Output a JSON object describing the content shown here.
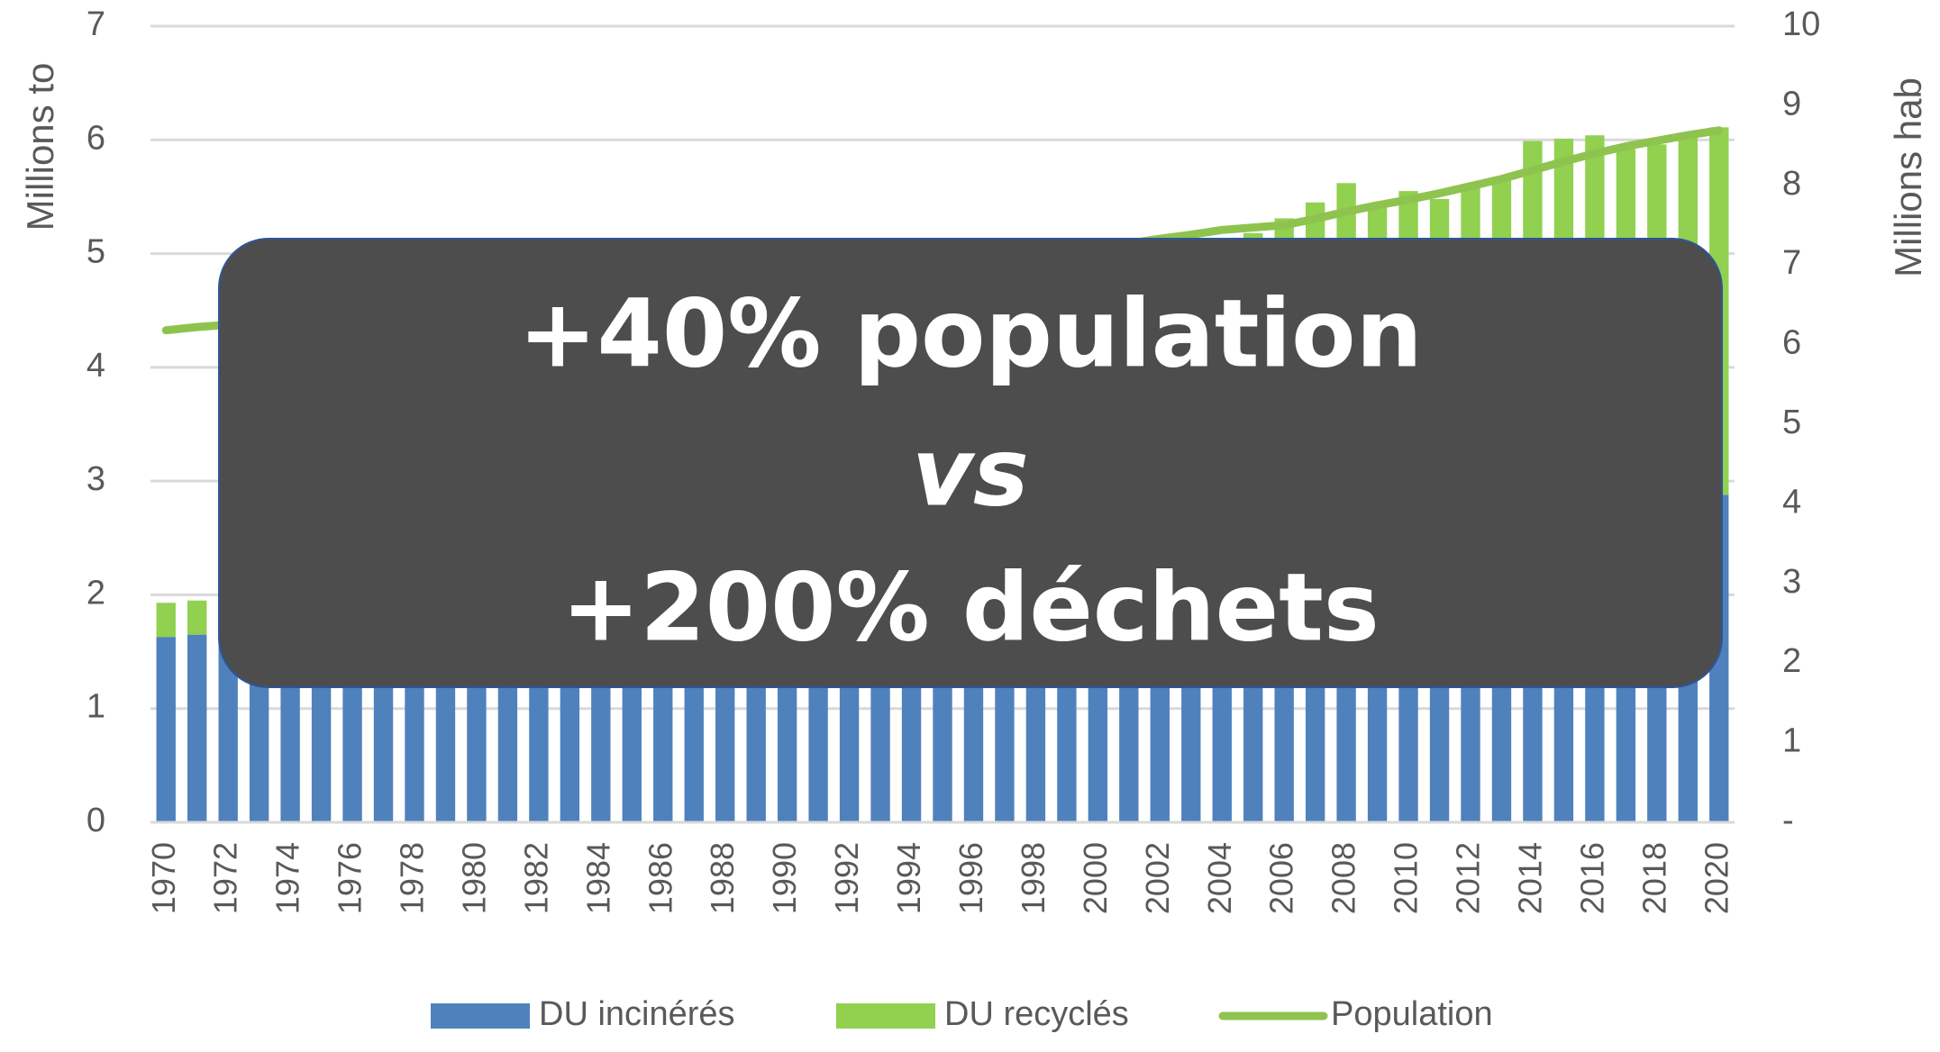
{
  "chart_data": {
    "type": "bar",
    "stacked": true,
    "y_label": "Millions to",
    "y2_label": "Millions hab",
    "categories": [
      "1970",
      null,
      "1972",
      null,
      "1974",
      null,
      "1976",
      null,
      "1978",
      null,
      "1980",
      null,
      "1982",
      null,
      "1984",
      null,
      "1986",
      null,
      "1988",
      null,
      "1990",
      null,
      "1992",
      null,
      "1994",
      null,
      "1996",
      null,
      "1998",
      null,
      "2000",
      null,
      "2002",
      null,
      "2004",
      null,
      "2006",
      null,
      "2008",
      null,
      "2010",
      null,
      "2012",
      null,
      "2014",
      null,
      "2016",
      null,
      "2018",
      null,
      "2020"
    ],
    "series": [
      {
        "name": "DU incinérés",
        "type": "bar",
        "color": "#4f81bd",
        "values": [
          1.63,
          1.65,
          1.68,
          1.7,
          1.73,
          1.75,
          1.78,
          1.8,
          1.83,
          1.85,
          1.88,
          1.9,
          1.93,
          1.95,
          1.98,
          2.0,
          2.03,
          2.05,
          2.08,
          2.1,
          2.13,
          2.15,
          2.18,
          2.2,
          2.23,
          2.25,
          2.28,
          2.3,
          2.33,
          2.35,
          2.38,
          2.4,
          2.43,
          2.45,
          2.48,
          2.5,
          2.53,
          2.55,
          2.58,
          2.6,
          2.63,
          2.65,
          2.68,
          2.7,
          2.73,
          2.75,
          2.78,
          2.8,
          2.83,
          2.85,
          2.88
        ]
      },
      {
        "name": "DU recyclés",
        "type": "bar",
        "color": "#92d050",
        "values": [
          0.3,
          0.3,
          0.37,
          0.44,
          0.51,
          0.58,
          0.65,
          0.72,
          0.79,
          0.86,
          0.93,
          1.0,
          1.07,
          1.14,
          1.21,
          1.28,
          1.35,
          1.42,
          1.49,
          1.56,
          1.63,
          1.7,
          1.77,
          1.84,
          1.91,
          1.98,
          2.05,
          2.12,
          2.19,
          2.26,
          2.33,
          2.4,
          2.47,
          2.54,
          2.61,
          2.68,
          2.78,
          2.9,
          3.04,
          2.82,
          2.92,
          2.83,
          2.9,
          2.96,
          3.26,
          3.26,
          3.26,
          3.12,
          3.13,
          3.19,
          3.23
        ]
      },
      {
        "name": "Population",
        "type": "line",
        "axis": "y2",
        "color": "#8fc34f",
        "values": [
          6.18,
          6.22,
          6.25,
          6.28,
          6.31,
          6.34,
          6.37,
          6.4,
          6.43,
          6.46,
          6.5,
          6.53,
          6.57,
          6.6,
          6.64,
          6.67,
          6.71,
          6.74,
          6.78,
          6.81,
          6.85,
          6.89,
          6.92,
          6.96,
          6.99,
          7.03,
          7.07,
          7.1,
          7.14,
          7.18,
          7.22,
          7.27,
          7.33,
          7.38,
          7.44,
          7.47,
          7.5,
          7.58,
          7.67,
          7.75,
          7.82,
          7.9,
          7.99,
          8.08,
          8.19,
          8.3,
          8.4,
          8.49,
          8.56,
          8.63,
          8.69
        ]
      }
    ],
    "ylim": [
      0,
      7
    ],
    "yticks": [
      0,
      1,
      2,
      3,
      4,
      5,
      6,
      7
    ],
    "y2lim": [
      0,
      10
    ],
    "y2ticks": [
      {
        "value": 0,
        "label": "-"
      },
      1,
      2,
      3,
      4,
      5,
      6,
      7,
      8,
      9,
      10
    ],
    "grid": true,
    "legend": "bottom",
    "annotations": [
      "+40% population",
      "vs",
      "+200% déchets"
    ]
  }
}
